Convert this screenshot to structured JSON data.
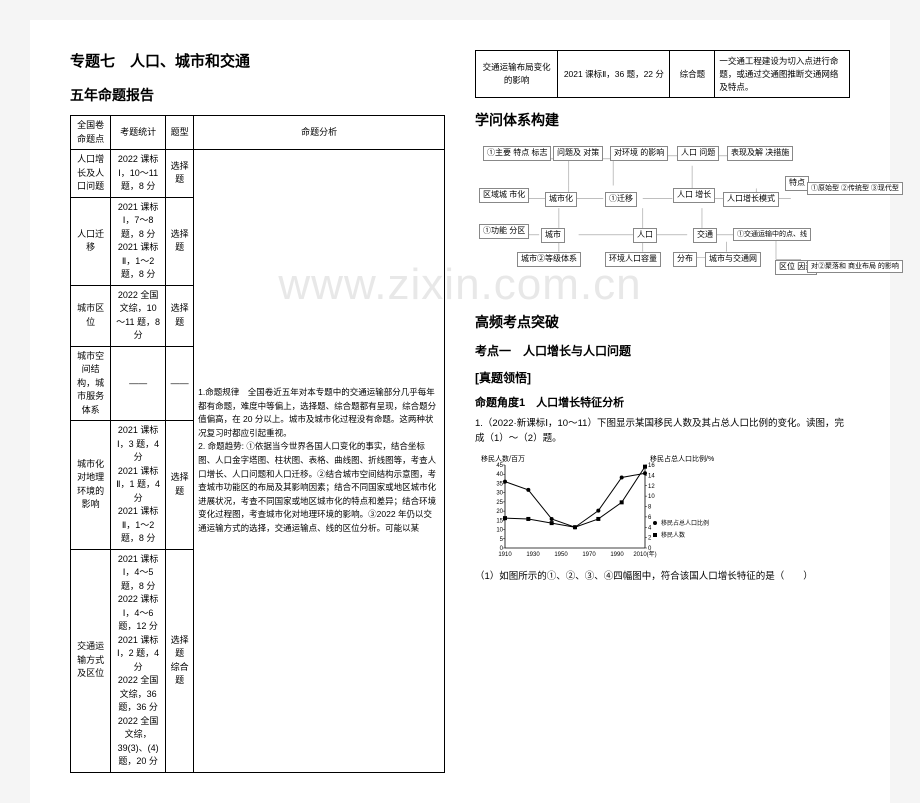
{
  "watermark": "www.zixin.com.cn",
  "title": "专题七　人口、城市和交通",
  "section_report": "五年命题报告",
  "table1": {
    "headers": [
      "全国卷命题点",
      "考题统计",
      "题型",
      "命题分析"
    ],
    "rows": [
      {
        "c0": "人口增长及人口问题",
        "c1": "2022 课标Ⅰ，10～11 题，8 分",
        "c2": "选择题"
      },
      {
        "c0": "人口迁移",
        "c1": "2021 课标Ⅰ，7～8 题，8 分\n2021 课标Ⅱ，1～2 题，8 分",
        "c2": "选择题"
      },
      {
        "c0": "城市区位",
        "c1": "2022 全国文综，10～11 题，8 分",
        "c2": "选择题"
      },
      {
        "c0": "城市空间结构，城市服务体系",
        "c1": "——",
        "c2": "——"
      },
      {
        "c0": "城市化对地理环境的影响",
        "c1": "2021 课标Ⅰ，3 题，4 分\n2021 课标Ⅱ，1 题，4 分\n2021 课标Ⅱ，1～2 题，8 分",
        "c2": "选择题"
      },
      {
        "c0": "交通运输方式及区位",
        "c1": "2021 课标Ⅰ，4～5 题，8 分\n2022 课标Ⅰ，4～6 题，12 分\n2021 课标Ⅰ，2 题，4 分\n2022 全国文综，36 题，36 分\n2022 全国文综，39(3)、(4)题，20 分",
        "c2": "选择题\n综合题"
      }
    ],
    "analysis": "1.命题规律　全国卷近五年对本专题中的交通运输部分几乎每年都有命题，难度中等偏上，选择题、综合题都有呈现，综合题分值偏高，在 20 分以上。城市及城市化过程没有命题。这两种状况复习时都应引起重视。\n2. 命题趋势: ①依据当今世界各国人口变化的事实，结合坐标图、人口金字塔图、柱状图、表格、曲线图、折线图等，考查人口增长、人口问题和人口迁移。②结合城市空间结构示意图，考查城市功能区的布局及其影响因素；结合不同国家或地区城市化进展状况，考查不同国家或地区城市化的特点和差异；结合环境变化过程图，考查城市化对地理环境的影响。③2022 年仍以交通运输方式的选择，交通运输点、线的区位分析。可能以某"
  },
  "table2": {
    "c0": "交通运输布局变化的影响",
    "c1": "2021 课标Ⅱ，36 题，22 分",
    "c2": "综合题",
    "c3": "一交通工程建设为切入点进行命题，或通过交通图推断交通网络及特点。"
  },
  "section_structure": "学问体系构建",
  "diagram": {
    "b1": "①主要 特点\n标志",
    "b2": "问题及\n对策",
    "b3": "对环境\n的影响",
    "b4": "人口\n问题",
    "b5": "表现及解\n决措施",
    "b6": "区域城\n市化",
    "b7": "城市化",
    "b8": "①迁移",
    "b9": "人口\n增长",
    "b10": "人口增长模式",
    "b10a": "特点",
    "b11": "①原始型\n②传统型\n③现代型",
    "b12": "①功能\n分区",
    "b13": "城市",
    "b14": "人口",
    "b15": "交通",
    "b16": "①交通运输中的点、线",
    "b17": "城市②等级体系",
    "b18": "环境人口容量",
    "b19": "分布",
    "b20": "城市与交通网",
    "b21": "区位\n因素",
    "b22": "对②聚落和\n商业布局\n的影响"
  },
  "section_breakthrough": "高频考点突破",
  "kd1": "考点一　人口增长与人口问题",
  "zhenti": "[真题领悟]",
  "angle": "命题角度1　人口增长特征分析",
  "q1": "1.（2022·新课标Ⅰ，10～11）下图显示某国移民人数及其占总人口比例的变化。读图，完成（1）～（2）题。",
  "chart": {
    "yLabelLeft": "移民人数/百万",
    "yLabelRight": "移民占总人口比例/%",
    "xTicks": [
      "1910",
      "1930",
      "1950",
      "1970",
      "1990",
      "2010(年)"
    ],
    "yLeftTicks": [
      "0",
      "5",
      "10",
      "15",
      "20",
      "25",
      "30",
      "35",
      "40",
      "45"
    ],
    "yRightTicks": [
      "0",
      "2",
      "4",
      "6",
      "8",
      "10",
      "12",
      "14",
      "16"
    ],
    "series1": {
      "name": "移民占总人口比例",
      "points": [
        [
          0,
          80
        ],
        [
          1,
          70
        ],
        [
          2,
          35
        ],
        [
          3,
          25
        ],
        [
          4,
          45
        ],
        [
          5,
          85
        ],
        [
          6,
          90
        ]
      ]
    },
    "series2": {
      "name": "移民人数",
      "points": [
        [
          0,
          36
        ],
        [
          1,
          35
        ],
        [
          2,
          30
        ],
        [
          3,
          25
        ],
        [
          4,
          35
        ],
        [
          5,
          55
        ],
        [
          6,
          98
        ]
      ]
    },
    "leg1": "移民占总人口比例",
    "leg2": "移民人数"
  },
  "q1b": "（1）如图所示的①、②、③、④四幅图中，符合该国人口增长特征的是（　　）"
}
